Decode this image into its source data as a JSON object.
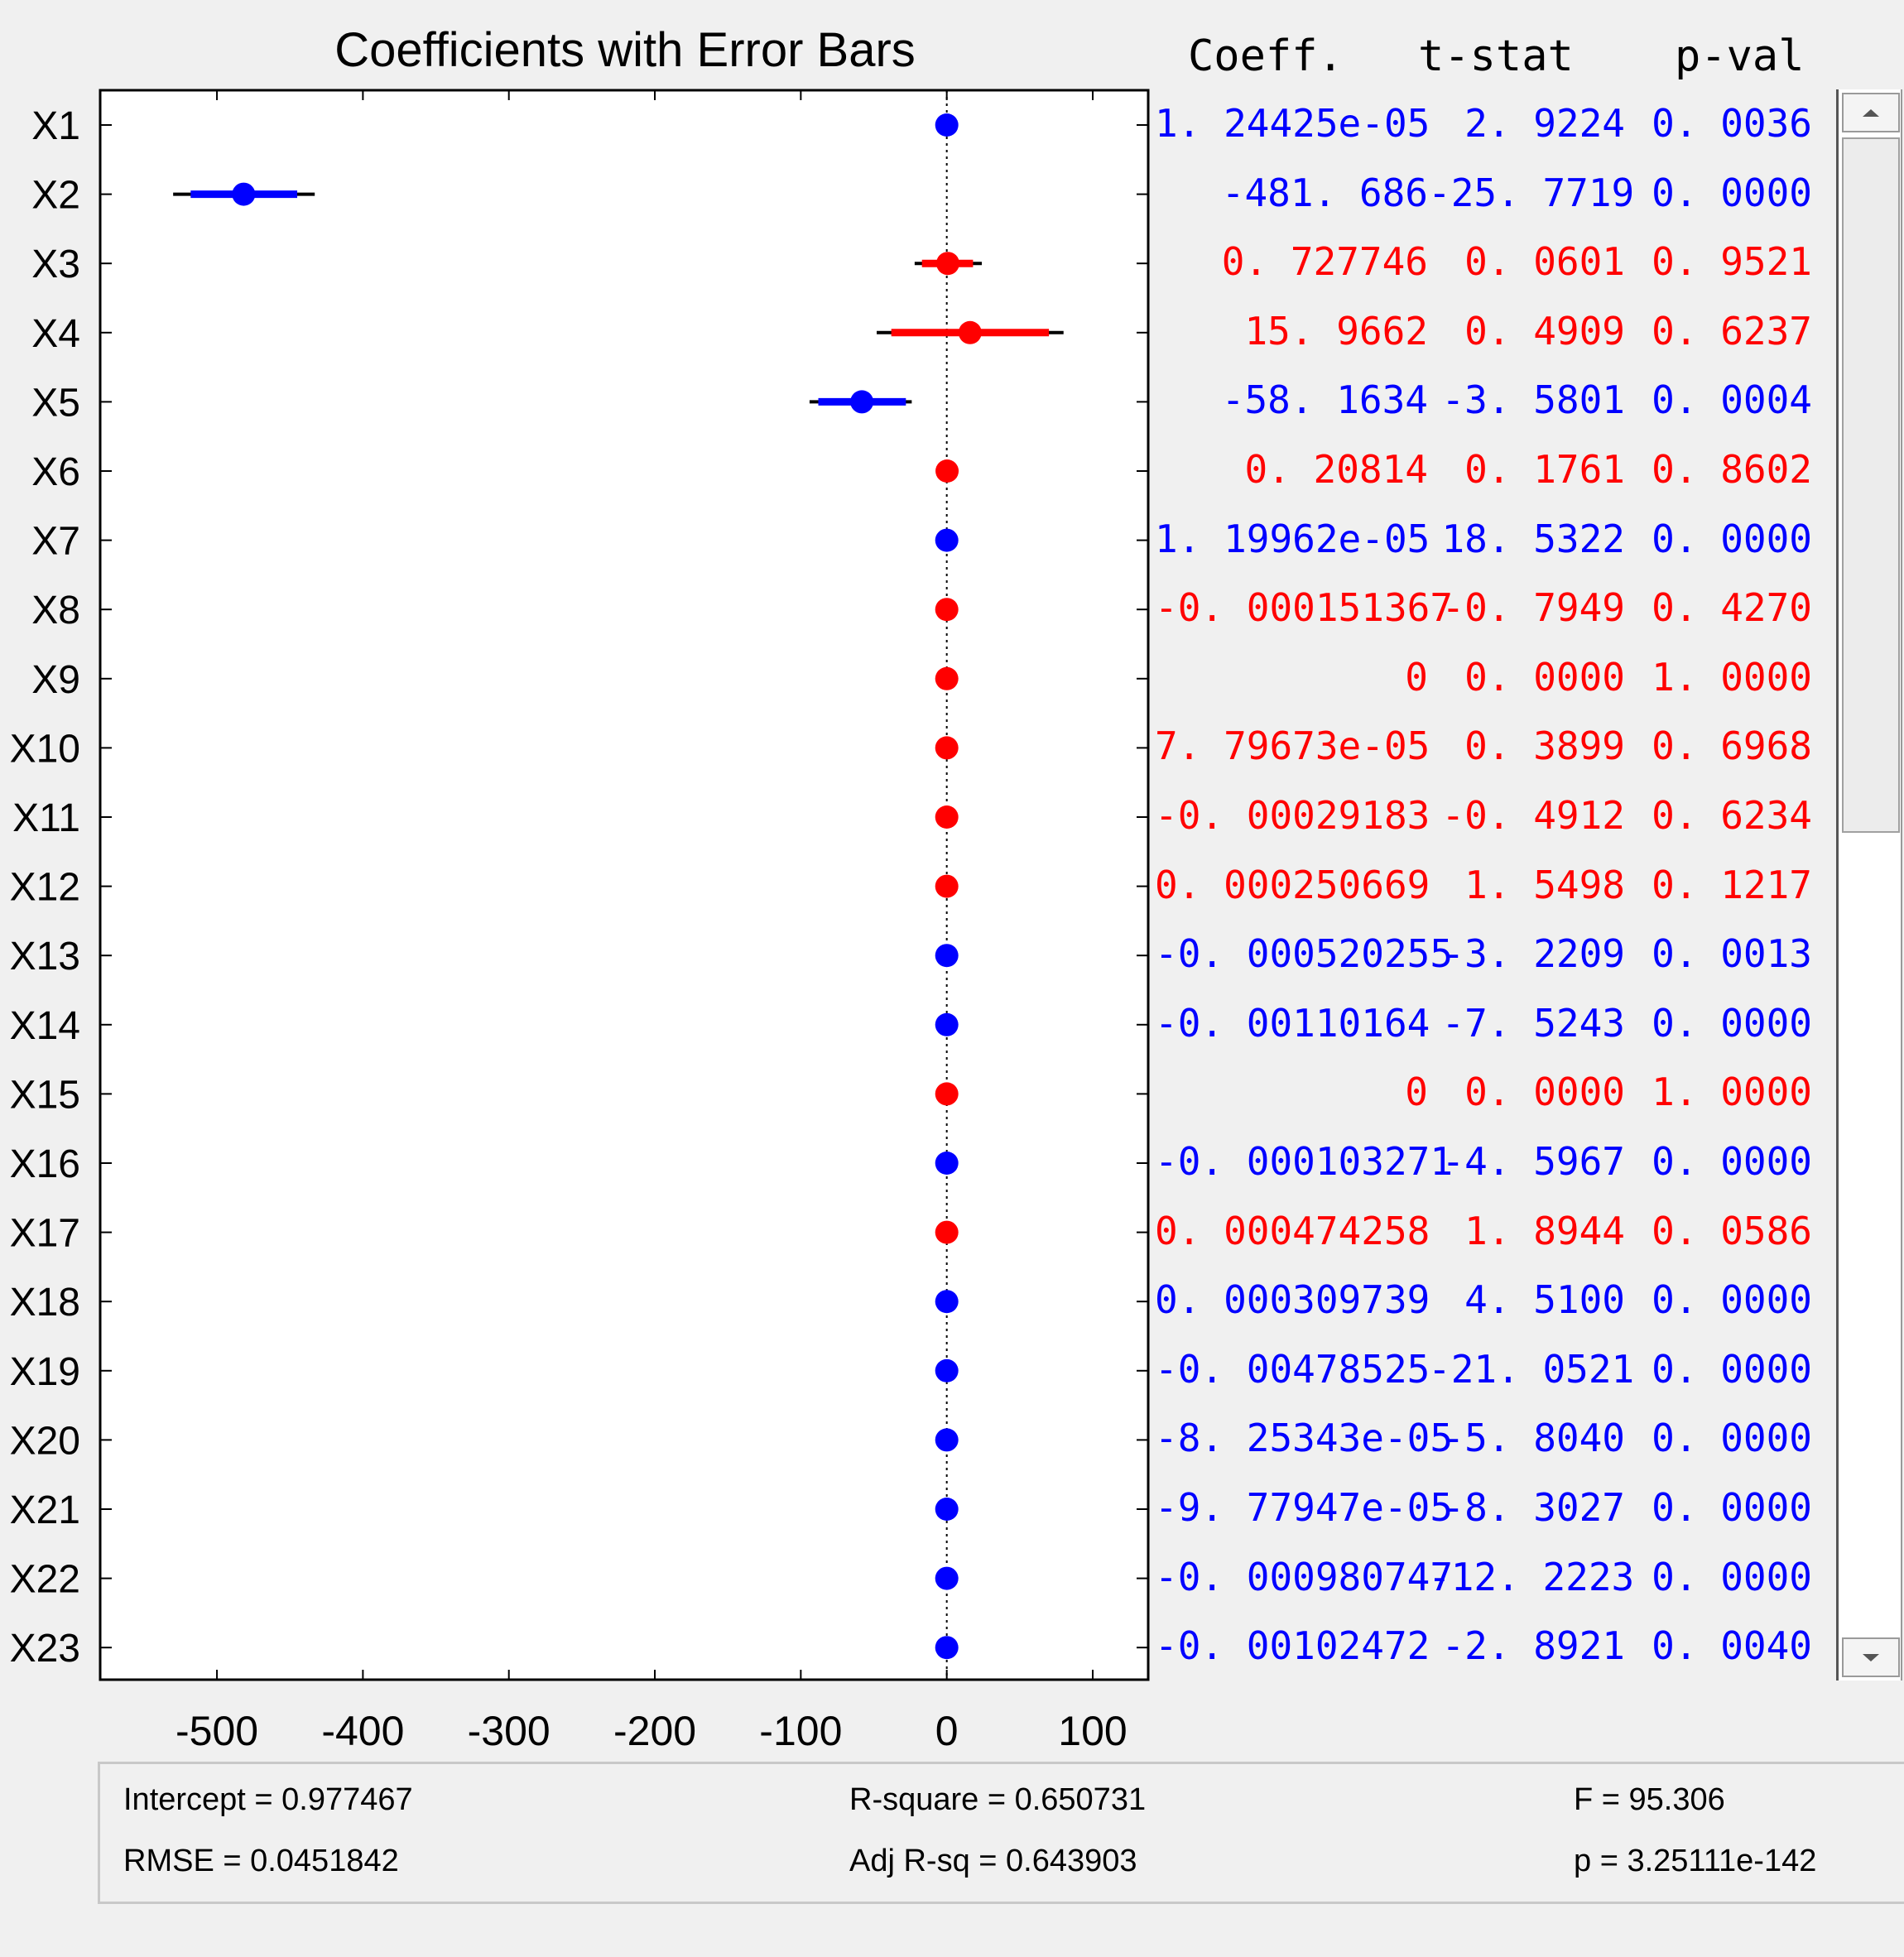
{
  "chart_data": {
    "type": "scatter",
    "subtype": "coefficient-errorbar",
    "title": "Coefficients with Error Bars",
    "xlim": [
      -580,
      138
    ],
    "xticks": [
      -500,
      -400,
      -300,
      -200,
      -100,
      0,
      100
    ],
    "xtick_labels": [
      "-500",
      "-400",
      "-300",
      "-200",
      "-100",
      "0",
      "100"
    ],
    "reference_line_x": 0,
    "categories": [
      "X1",
      "X2",
      "X3",
      "X4",
      "X5",
      "X6",
      "X7",
      "X8",
      "X9",
      "X10",
      "X11",
      "X12",
      "X13",
      "X14",
      "X15",
      "X16",
      "X17",
      "X18",
      "X19",
      "X20",
      "X21",
      "X22",
      "X23"
    ],
    "colors": {
      "significant": "#0000ff",
      "not_significant": "#ff0000",
      "ci_outer": "#000000"
    },
    "points": [
      {
        "name": "X1",
        "coef": 1.24425e-05,
        "lo": 0,
        "hi": 0,
        "lo2": 0,
        "hi2": 0,
        "sig": true
      },
      {
        "name": "X2",
        "coef": -481.686,
        "lo": -518,
        "hi": -445,
        "lo2": -530,
        "hi2": -433,
        "sig": true
      },
      {
        "name": "X3",
        "coef": 0.727746,
        "lo": -17,
        "hi": 18,
        "lo2": -22,
        "hi2": 24,
        "sig": false
      },
      {
        "name": "X4",
        "coef": 15.9662,
        "lo": -38,
        "hi": 70,
        "lo2": -48,
        "hi2": 80,
        "sig": false
      },
      {
        "name": "X5",
        "coef": -58.1634,
        "lo": -88,
        "hi": -28,
        "lo2": -94,
        "hi2": -24,
        "sig": true
      },
      {
        "name": "X6",
        "coef": 0.20814,
        "lo": 0,
        "hi": 0,
        "lo2": 0,
        "hi2": 0,
        "sig": false
      },
      {
        "name": "X7",
        "coef": 1.19962e-05,
        "lo": 0,
        "hi": 0,
        "lo2": 0,
        "hi2": 0,
        "sig": true
      },
      {
        "name": "X8",
        "coef": -0.000151367,
        "lo": 0,
        "hi": 0,
        "lo2": 0,
        "hi2": 0,
        "sig": false
      },
      {
        "name": "X9",
        "coef": 0,
        "lo": 0,
        "hi": 0,
        "lo2": 0,
        "hi2": 0,
        "sig": false
      },
      {
        "name": "X10",
        "coef": 7.79673e-05,
        "lo": 0,
        "hi": 0,
        "lo2": 0,
        "hi2": 0,
        "sig": false
      },
      {
        "name": "X11",
        "coef": -0.00029183,
        "lo": 0,
        "hi": 0,
        "lo2": 0,
        "hi2": 0,
        "sig": false
      },
      {
        "name": "X12",
        "coef": 0.000250669,
        "lo": 0,
        "hi": 0,
        "lo2": 0,
        "hi2": 0,
        "sig": false
      },
      {
        "name": "X13",
        "coef": -0.000520255,
        "lo": 0,
        "hi": 0,
        "lo2": 0,
        "hi2": 0,
        "sig": true
      },
      {
        "name": "X14",
        "coef": -0.00110164,
        "lo": 0,
        "hi": 0,
        "lo2": 0,
        "hi2": 0,
        "sig": true
      },
      {
        "name": "X15",
        "coef": 0,
        "lo": 0,
        "hi": 0,
        "lo2": 0,
        "hi2": 0,
        "sig": false
      },
      {
        "name": "X16",
        "coef": -0.000103271,
        "lo": 0,
        "hi": 0,
        "lo2": 0,
        "hi2": 0,
        "sig": true
      },
      {
        "name": "X17",
        "coef": 0.000474258,
        "lo": 0,
        "hi": 0,
        "lo2": 0,
        "hi2": 0,
        "sig": false
      },
      {
        "name": "X18",
        "coef": 0.000309739,
        "lo": 0,
        "hi": 0,
        "lo2": 0,
        "hi2": 0,
        "sig": true
      },
      {
        "name": "X19",
        "coef": -0.00478525,
        "lo": 0,
        "hi": 0,
        "lo2": 0,
        "hi2": 0,
        "sig": true
      },
      {
        "name": "X20",
        "coef": -8.25343e-05,
        "lo": 0,
        "hi": 0,
        "lo2": 0,
        "hi2": 0,
        "sig": true
      },
      {
        "name": "X21",
        "coef": -9.77947e-05,
        "lo": 0,
        "hi": 0,
        "lo2": 0,
        "hi2": 0,
        "sig": true
      },
      {
        "name": "X22",
        "coef": -0.000980747,
        "lo": 0,
        "hi": 0,
        "lo2": 0,
        "hi2": 0,
        "sig": true
      },
      {
        "name": "X23",
        "coef": -0.00102472,
        "lo": 0,
        "hi": 0,
        "lo2": 0,
        "hi2": 0,
        "sig": true
      }
    ]
  },
  "table": {
    "headers": {
      "coeff": "Coeff.",
      "tstat": "t-stat",
      "pval": "p-val"
    },
    "rows": [
      {
        "coeff": "1. 24425e-05",
        "tstat": "2. 9224",
        "pval": "0. 0036",
        "sig": true
      },
      {
        "coeff": "-481. 686",
        "tstat": "-25. 7719",
        "pval": "0. 0000",
        "sig": true
      },
      {
        "coeff": "0. 727746",
        "tstat": "0. 0601",
        "pval": "0. 9521",
        "sig": false
      },
      {
        "coeff": "15. 9662",
        "tstat": "0. 4909",
        "pval": "0. 6237",
        "sig": false
      },
      {
        "coeff": "-58. 1634",
        "tstat": "-3. 5801",
        "pval": "0. 0004",
        "sig": true
      },
      {
        "coeff": "0. 20814",
        "tstat": "0. 1761",
        "pval": "0. 8602",
        "sig": false
      },
      {
        "coeff": "1. 19962e-05",
        "tstat": "18. 5322",
        "pval": "0. 0000",
        "sig": true
      },
      {
        "coeff": "-0. 000151367",
        "tstat": "-0. 7949",
        "pval": "0. 4270",
        "sig": false
      },
      {
        "coeff": "0",
        "tstat": "0. 0000",
        "pval": "1. 0000",
        "sig": false
      },
      {
        "coeff": "7. 79673e-05",
        "tstat": "0. 3899",
        "pval": "0. 6968",
        "sig": false
      },
      {
        "coeff": "-0. 00029183",
        "tstat": "-0. 4912",
        "pval": "0. 6234",
        "sig": false
      },
      {
        "coeff": "0. 000250669",
        "tstat": "1. 5498",
        "pval": "0. 1217",
        "sig": false
      },
      {
        "coeff": "-0. 000520255",
        "tstat": "-3. 2209",
        "pval": "0. 0013",
        "sig": true
      },
      {
        "coeff": "-0. 00110164",
        "tstat": "-7. 5243",
        "pval": "0. 0000",
        "sig": true
      },
      {
        "coeff": "0",
        "tstat": "0. 0000",
        "pval": "1. 0000",
        "sig": false
      },
      {
        "coeff": "-0. 000103271",
        "tstat": "-4. 5967",
        "pval": "0. 0000",
        "sig": true
      },
      {
        "coeff": "0. 000474258",
        "tstat": "1. 8944",
        "pval": "0. 0586",
        "sig": false
      },
      {
        "coeff": "0. 000309739",
        "tstat": "4. 5100",
        "pval": "0. 0000",
        "sig": true
      },
      {
        "coeff": "-0. 00478525",
        "tstat": "-21. 0521",
        "pval": "0. 0000",
        "sig": true
      },
      {
        "coeff": "-8. 25343e-05",
        "tstat": "-5. 8040",
        "pval": "0. 0000",
        "sig": true
      },
      {
        "coeff": "-9. 77947e-05",
        "tstat": "-8. 3027",
        "pval": "0. 0000",
        "sig": true
      },
      {
        "coeff": "-0. 000980747",
        "tstat": "-12. 2223",
        "pval": "0. 0000",
        "sig": true
      },
      {
        "coeff": "-0. 00102472",
        "tstat": "-2. 8921",
        "pval": "0. 0040",
        "sig": true
      }
    ]
  },
  "stats": {
    "intercept": "Intercept = 0.977467",
    "rmse": "RMSE = 0.0451842",
    "rsquare": "R-square = 0.650731",
    "adj_rsq": "Adj R-sq = 0.643903",
    "f": "F = 95.306",
    "p": "p = 3.25111e-142"
  }
}
